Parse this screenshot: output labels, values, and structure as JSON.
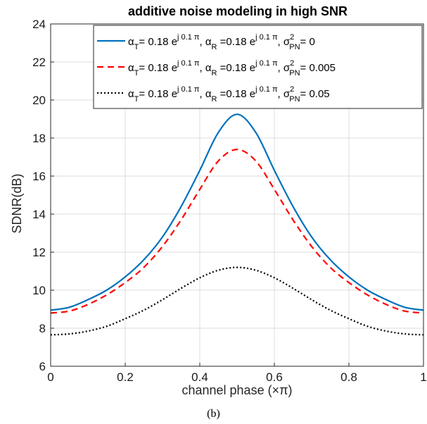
{
  "caption": "(b)",
  "chart_data": {
    "type": "line",
    "title": "additive noise modeling in high SNR",
    "xlabel": "channel phase (×π)",
    "ylabel": "SDNR(dB)",
    "xlim": [
      0,
      1
    ],
    "ylim": [
      6,
      24
    ],
    "xticks": [
      "0",
      "0.2",
      "0.4",
      "0.6",
      "0.8",
      "1"
    ],
    "yticks": [
      "6",
      "8",
      "10",
      "12",
      "14",
      "16",
      "18",
      "20",
      "22",
      "24"
    ],
    "grid": true,
    "legend_position": "top-right",
    "x": [
      0,
      0.05,
      0.1,
      0.15,
      0.2,
      0.25,
      0.3,
      0.35,
      0.4,
      0.45,
      0.5,
      0.55,
      0.6,
      0.65,
      0.7,
      0.75,
      0.8,
      0.85,
      0.9,
      0.95,
      1.0
    ],
    "series": [
      {
        "name": "α_T= 0.18 e^{j 0.1 π}, α_R =0.18 e^{j 0.1 π}, σ²_PN= 0",
        "color": "#0072bd",
        "style": "solid",
        "values": [
          8.95,
          9.1,
          9.5,
          10.0,
          10.7,
          11.6,
          12.8,
          14.4,
          16.3,
          18.3,
          19.25,
          18.3,
          16.3,
          14.4,
          12.8,
          11.6,
          10.7,
          10.0,
          9.5,
          9.1,
          8.95
        ]
      },
      {
        "name": "α_T= 0.18 e^{j 0.1 π}, α_R =0.18 e^{j 0.1 π}, σ²_PN= 0.005",
        "color": "#ff0000",
        "style": "dashed",
        "values": [
          8.8,
          8.9,
          9.25,
          9.75,
          10.4,
          11.2,
          12.3,
          13.7,
          15.3,
          16.8,
          17.4,
          16.8,
          15.3,
          13.7,
          12.3,
          11.2,
          10.4,
          9.75,
          9.25,
          8.9,
          8.8
        ]
      },
      {
        "name": "α_T= 0.18 e^{j 0.1 π}, α_R =0.18 e^{j 0.1 π}, σ²_PN= 0.05",
        "color": "#000000",
        "style": "dotted",
        "values": [
          7.65,
          7.7,
          7.85,
          8.1,
          8.5,
          8.95,
          9.5,
          10.1,
          10.65,
          11.05,
          11.2,
          11.05,
          10.65,
          10.1,
          9.5,
          8.95,
          8.5,
          8.1,
          7.85,
          7.7,
          7.65
        ]
      }
    ],
    "legend": [
      {
        "alpha_t": "α",
        "sub_t": "T",
        "mid1": "= 0.18 e",
        "exp1": "j 0.1 π",
        "mid2": ", α",
        "sub_r": "R",
        "mid3": " =0.18 e",
        "exp2": "j 0.1 π",
        "mid4": ", σ",
        "sup_pn": "2",
        "sub_pn": "PN",
        "value": "= 0"
      },
      {
        "alpha_t": "α",
        "sub_t": "T",
        "mid1": "= 0.18 e",
        "exp1": "j 0.1 π",
        "mid2": ", α",
        "sub_r": "R",
        "mid3": " =0.18 e",
        "exp2": "j 0.1 π",
        "mid4": ", σ",
        "sup_pn": "2",
        "sub_pn": "PN",
        "value": "= 0.005"
      },
      {
        "alpha_t": "α",
        "sub_t": "T",
        "mid1": "= 0.18 e",
        "exp1": "j 0.1 π",
        "mid2": ", α",
        "sub_r": "R",
        "mid3": " =0.18 e",
        "exp2": "j 0.1 π",
        "mid4": ", σ",
        "sup_pn": "2",
        "sub_pn": "PN",
        "value": "= 0.05"
      }
    ]
  }
}
